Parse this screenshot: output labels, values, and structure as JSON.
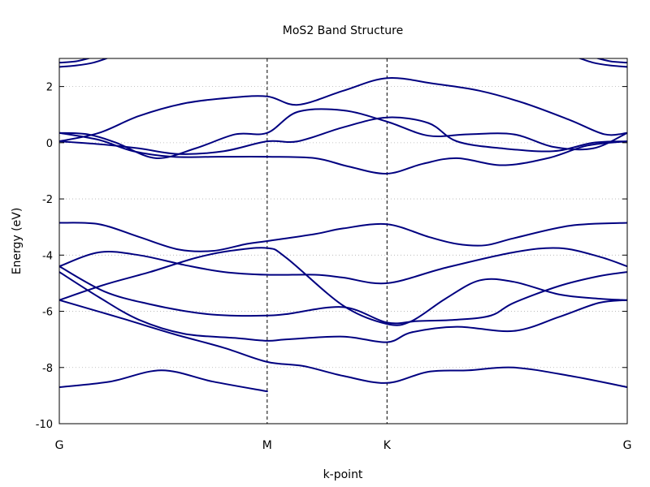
{
  "chart_data": {
    "type": "line",
    "title": "MoS2 Band Structure",
    "xlabel": "k-point",
    "ylabel": "Energy (eV)",
    "ylim": [
      -10,
      3
    ],
    "yticks": [
      2,
      0,
      -2,
      -4,
      -6,
      -8,
      -10
    ],
    "ytick_labels": [
      "2",
      "0",
      "-2",
      "-4",
      "-6",
      "-8",
      "-10"
    ],
    "xlim": [
      0,
      1
    ],
    "kpoints": [
      {
        "label": "G",
        "x": 0.0
      },
      {
        "label": "M",
        "x": 0.366
      },
      {
        "label": "K",
        "x": 0.577
      },
      {
        "label": "G",
        "x": 1.0
      }
    ],
    "high_symmetry_lines": "dashed",
    "grid": "horizontal-dotted",
    "line_color": "#000080",
    "series": [
      {
        "x": [
          0,
          0.09,
          0.18,
          0.27,
          0.366
        ],
        "values": [
          -8.7,
          -8.5,
          -8.1,
          -8.5,
          -8.85
        ]
      },
      {
        "x": [
          0,
          0.11,
          0.2,
          0.29,
          0.366,
          0.43,
          0.5,
          0.577,
          0.65,
          0.72,
          0.8,
          0.9,
          1.0
        ],
        "values": [
          -5.6,
          -6.25,
          -6.8,
          -7.3,
          -7.8,
          -7.95,
          -8.3,
          -8.55,
          -8.15,
          -8.1,
          -8.0,
          -8.3,
          -8.7
        ]
      },
      {
        "x": [
          0,
          0.07,
          0.14,
          0.22,
          0.31,
          0.366,
          0.4,
          0.5,
          0.577,
          0.62,
          0.7,
          0.8,
          0.88,
          0.95,
          1.0
        ],
        "values": [
          -4.6,
          -5.5,
          -6.3,
          -6.8,
          -6.95,
          -7.05,
          -7.0,
          -6.9,
          -7.1,
          -6.75,
          -6.55,
          -6.7,
          -6.2,
          -5.7,
          -5.6
        ]
      },
      {
        "x": [
          0,
          0.08,
          0.16,
          0.24,
          0.3,
          0.366,
          0.4,
          0.5,
          0.577,
          0.63,
          0.7,
          0.76,
          0.8,
          0.88,
          0.95,
          1.0
        ],
        "values": [
          -4.4,
          -5.3,
          -5.75,
          -6.05,
          -6.15,
          -6.15,
          -6.1,
          -5.85,
          -6.4,
          -6.35,
          -6.3,
          -6.15,
          -5.7,
          -5.1,
          -4.75,
          -4.6
        ]
      },
      {
        "x": [
          0,
          0.08,
          0.16,
          0.24,
          0.3,
          0.366,
          0.4,
          0.5,
          0.577,
          0.62,
          0.68,
          0.74,
          0.8,
          0.88,
          0.95,
          1.0
        ],
        "values": [
          -5.6,
          -5.05,
          -4.6,
          -4.1,
          -3.85,
          -3.75,
          -4.1,
          -5.8,
          -6.45,
          -6.35,
          -5.55,
          -4.9,
          -4.95,
          -5.4,
          -5.55,
          -5.6
        ]
      },
      {
        "x": [
          0,
          0.07,
          0.14,
          0.22,
          0.29,
          0.366,
          0.45,
          0.5,
          0.577,
          0.68,
          0.8,
          0.88,
          0.95,
          1.0
        ],
        "values": [
          -4.4,
          -3.9,
          -4.0,
          -4.35,
          -4.6,
          -4.7,
          -4.7,
          -4.8,
          -5.0,
          -4.45,
          -3.9,
          -3.75,
          -4.05,
          -4.4
        ]
      },
      {
        "x": [
          0,
          0.07,
          0.14,
          0.21,
          0.27,
          0.33,
          0.366,
          0.45,
          0.5,
          0.577,
          0.65,
          0.7,
          0.75,
          0.8,
          0.9,
          1.0
        ],
        "values": [
          -2.85,
          -2.9,
          -3.35,
          -3.8,
          -3.85,
          -3.6,
          -3.5,
          -3.25,
          -3.05,
          -2.9,
          -3.35,
          -3.6,
          -3.65,
          -3.4,
          -2.95,
          -2.85
        ]
      },
      {
        "x": [
          0,
          0.07,
          0.13,
          0.2,
          0.28,
          0.366,
          0.45,
          0.51,
          0.577,
          0.64,
          0.7,
          0.78,
          0.86,
          0.93,
          1.0
        ],
        "values": [
          0.35,
          0.1,
          -0.3,
          -0.5,
          -0.5,
          -0.5,
          -0.55,
          -0.85,
          -1.1,
          -0.75,
          -0.55,
          -0.8,
          -0.55,
          -0.1,
          0.05
        ]
      },
      {
        "x": [
          0,
          0.07,
          0.14,
          0.21,
          0.29,
          0.366,
          0.42,
          0.5,
          0.577,
          0.65,
          0.7,
          0.78,
          0.87,
          0.94,
          1.0
        ],
        "values": [
          0.05,
          -0.05,
          -0.2,
          -0.4,
          -0.3,
          0.05,
          0.05,
          0.55,
          0.9,
          0.7,
          0.05,
          -0.2,
          -0.3,
          0.0,
          0.05
        ]
      },
      {
        "x": [
          0,
          0.05,
          0.1,
          0.17,
          0.24,
          0.31,
          0.366,
          0.42,
          0.5,
          0.577,
          0.65,
          0.72,
          0.8,
          0.87,
          0.94,
          1.0
        ],
        "values": [
          0.35,
          0.3,
          0.0,
          -0.55,
          -0.2,
          0.3,
          0.35,
          1.1,
          1.15,
          0.75,
          0.25,
          0.3,
          0.3,
          -0.15,
          -0.2,
          0.35
        ]
      },
      {
        "x": [
          0,
          0.07,
          0.14,
          0.22,
          0.3,
          0.366,
          0.42,
          0.5,
          0.577,
          0.66,
          0.74,
          0.82,
          0.9,
          0.96,
          1.0
        ],
        "values": [
          0.05,
          0.35,
          0.95,
          1.4,
          1.6,
          1.65,
          1.35,
          1.85,
          2.3,
          2.1,
          1.85,
          1.4,
          0.8,
          0.3,
          0.35
        ]
      },
      {
        "x": [
          0,
          0.03,
          0.06,
          0.09
        ],
        "values": [
          2.7,
          2.75,
          2.85,
          3.05
        ]
      },
      {
        "x": [
          0,
          0.03,
          0.06
        ],
        "values": [
          2.85,
          2.9,
          3.05
        ]
      },
      {
        "x": [
          0.91,
          0.94,
          0.97,
          1.0
        ],
        "values": [
          3.05,
          2.85,
          2.75,
          2.7
        ]
      },
      {
        "x": [
          0.94,
          0.97,
          1.0
        ],
        "values": [
          3.05,
          2.9,
          2.85
        ]
      }
    ]
  }
}
